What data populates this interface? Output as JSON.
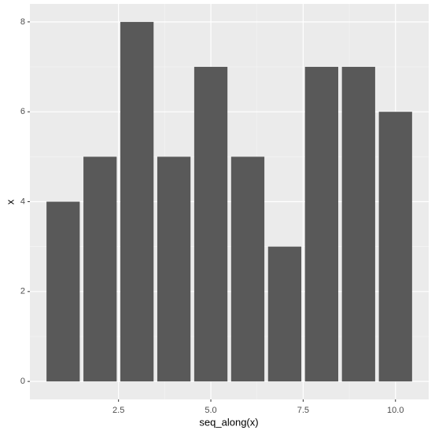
{
  "chart_data": {
    "type": "bar",
    "x": [
      1,
      2,
      3,
      4,
      5,
      6,
      7,
      8,
      9,
      10
    ],
    "values": [
      4,
      5,
      8,
      5,
      7,
      5,
      3,
      7,
      7,
      6
    ],
    "color": "#595959",
    "xlabel": "seq_along(x)",
    "ylabel": "x",
    "xlim": [
      0.1,
      10.9
    ],
    "xticks": [
      2.5,
      {
        "value": 5,
        "label": "5.0"
      },
      7.5,
      {
        "value": 10,
        "label": "10.0"
      }
    ],
    "ylim": [
      -0.4,
      8.4
    ],
    "yticks": [
      0,
      2,
      4,
      6,
      8
    ],
    "grid": true
  }
}
